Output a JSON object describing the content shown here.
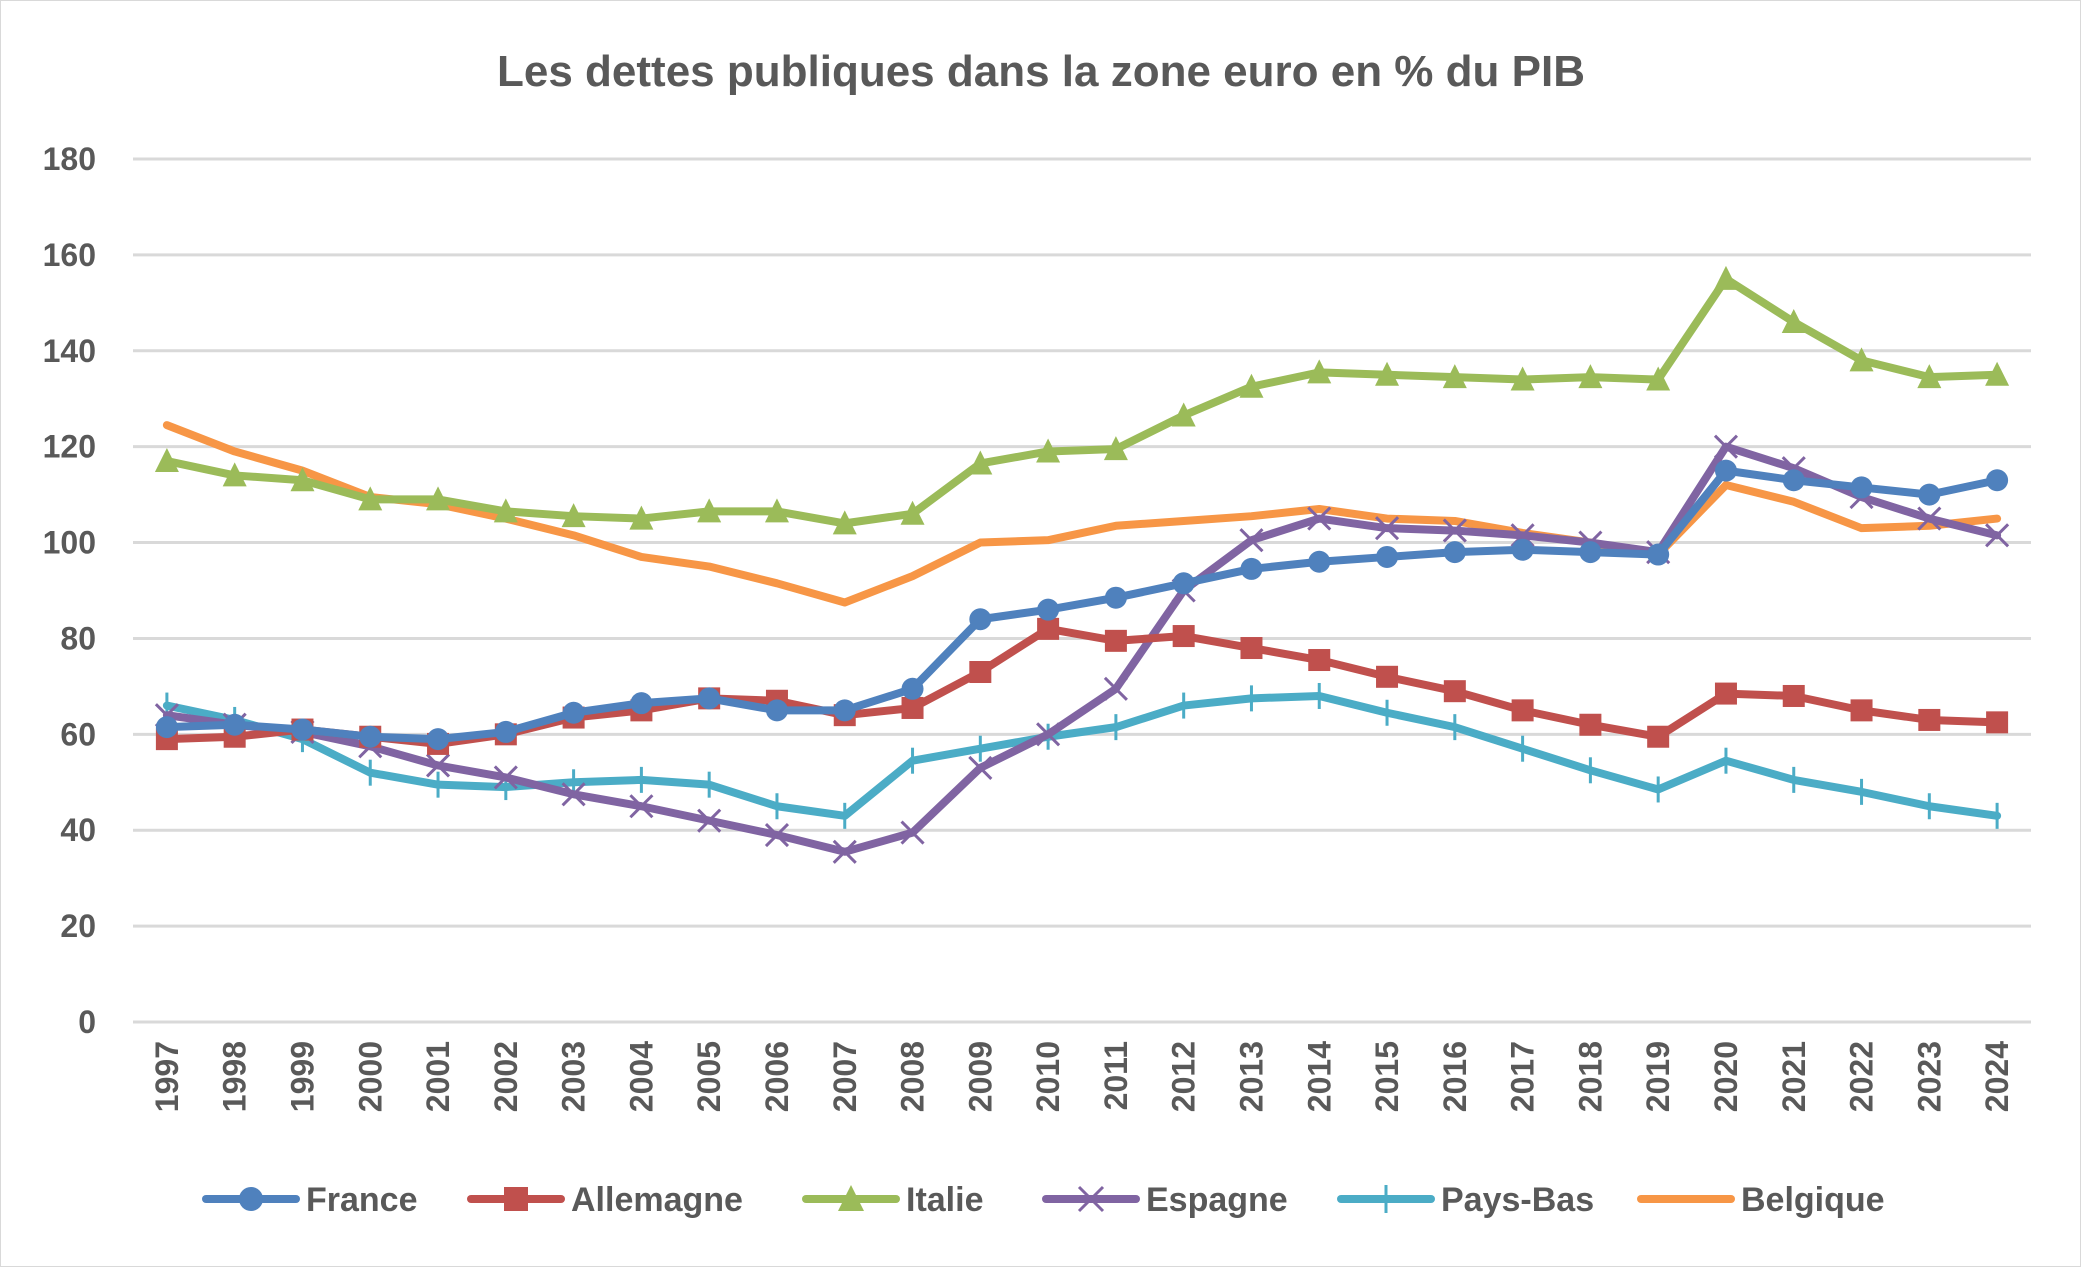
{
  "chart_data": {
    "type": "line",
    "title": "Les dettes publiques dans la zone euro en % du PIB",
    "xlabel": "",
    "ylabel": "",
    "ylim": [
      0,
      180
    ],
    "yticks": [
      0,
      20,
      40,
      60,
      80,
      100,
      120,
      140,
      160,
      180
    ],
    "grid": true,
    "legend_position": "bottom",
    "x": [
      "1997",
      "1998",
      "1999",
      "2000",
      "2001",
      "2002",
      "2003",
      "2004",
      "2005",
      "2006",
      "2007",
      "2008",
      "2009",
      "2010",
      "2011",
      "2012",
      "2013",
      "2014",
      "2015",
      "2016",
      "2017",
      "2018",
      "2019",
      "2020",
      "2021",
      "2022",
      "2023",
      "2024"
    ],
    "series": [
      {
        "name": "France",
        "color": "#4f81bd",
        "marker": "circle",
        "values": [
          61.5,
          62,
          61,
          59.5,
          59,
          60.5,
          64.5,
          66.5,
          67.5,
          65,
          65,
          69.5,
          84,
          86,
          88.5,
          91.5,
          94.5,
          96,
          97,
          98,
          98.5,
          98,
          97.5,
          115,
          113,
          111.5,
          110,
          113
        ]
      },
      {
        "name": "Allemagne",
        "color": "#c0504d",
        "marker": "square",
        "values": [
          59,
          59.5,
          61,
          59.5,
          58,
          60,
          63.5,
          65,
          67.5,
          67,
          64,
          65.5,
          73,
          82,
          79.5,
          80.5,
          78,
          75.5,
          72,
          69,
          65,
          62,
          59.5,
          68.5,
          68,
          65,
          63,
          62.5
        ]
      },
      {
        "name": "Italie",
        "color": "#9bbb59",
        "marker": "triangle",
        "values": [
          117,
          114,
          113,
          109,
          109,
          106.5,
          105.5,
          105,
          106.5,
          106.5,
          104,
          106,
          116.5,
          119,
          119.5,
          126.5,
          132.5,
          135.5,
          135,
          134.5,
          134,
          134.5,
          134,
          155,
          146,
          138,
          134.5,
          135
        ]
      },
      {
        "name": "Espagne",
        "color": "#8064a2",
        "marker": "x",
        "values": [
          64,
          62,
          60.5,
          57.5,
          53.5,
          51,
          47.5,
          45,
          42,
          39,
          35.5,
          39.5,
          53,
          60,
          69.5,
          90,
          100.5,
          105,
          103,
          102.5,
          101.5,
          100,
          98,
          120,
          115.5,
          109.5,
          105,
          101.5
        ]
      },
      {
        "name": "Pays-Bas",
        "color": "#4bacc6",
        "marker": "plus",
        "values": [
          66,
          63,
          59,
          52,
          49.5,
          49,
          50,
          50.5,
          49.5,
          45,
          43,
          54.5,
          57,
          59.5,
          61.5,
          66,
          67.5,
          68,
          64.5,
          61.5,
          57,
          52.5,
          48.5,
          54.5,
          50.5,
          48,
          45,
          43
        ]
      },
      {
        "name": "Belgique",
        "color": "#f79646",
        "marker": "none",
        "values": [
          124.5,
          119,
          115,
          109.5,
          108,
          105,
          101.5,
          97,
          95,
          91.5,
          87.5,
          93,
          100,
          100.5,
          103.5,
          104.5,
          105.5,
          107,
          105,
          104.5,
          102,
          100,
          97.5,
          112,
          108.5,
          103,
          103.5,
          105
        ]
      }
    ]
  }
}
